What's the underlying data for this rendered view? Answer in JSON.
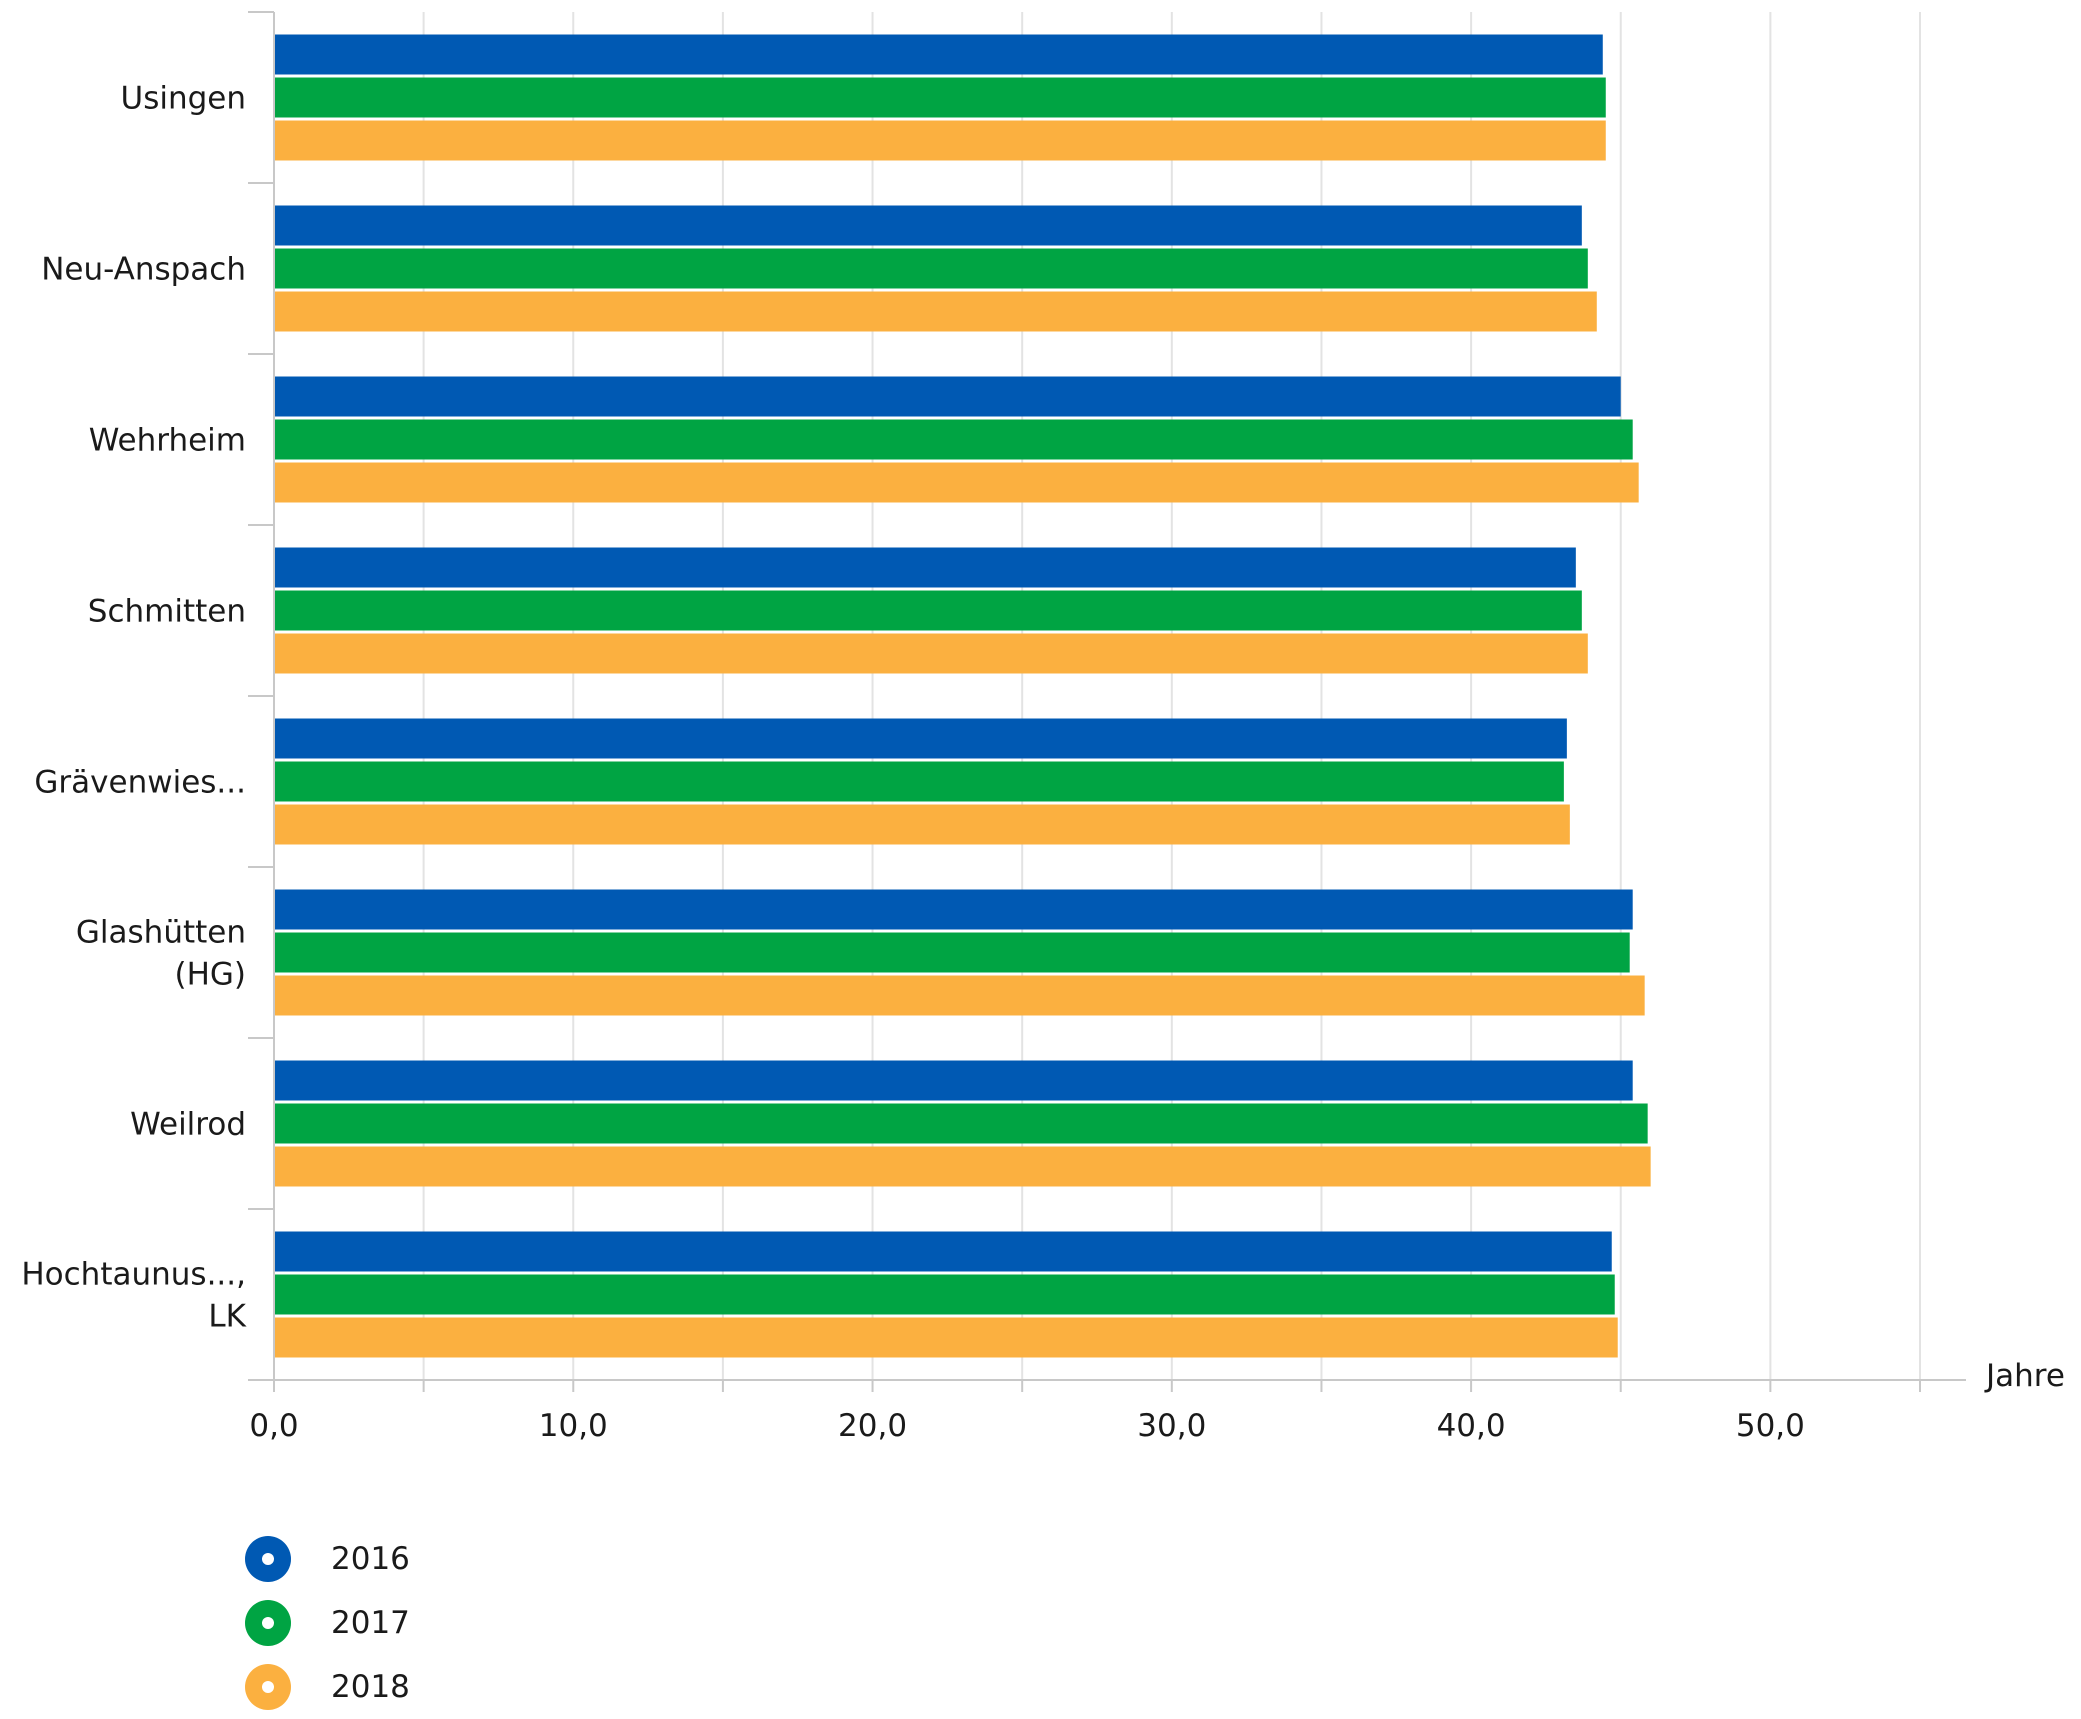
{
  "chart_data": {
    "type": "bar",
    "orientation": "horizontal",
    "categories": [
      [
        "Usingen"
      ],
      [
        "Neu-Anspach"
      ],
      [
        "Wehrheim"
      ],
      [
        "Schmitten"
      ],
      [
        "Grävenwies..."
      ],
      [
        "Glashütten",
        "(HG)"
      ],
      [
        "Weilrod"
      ],
      [
        "Hochtaunus...,",
        "LK"
      ]
    ],
    "series": [
      {
        "name": "2016",
        "color": "#0059b3",
        "values": [
          44.4,
          43.7,
          45.0,
          43.5,
          43.2,
          45.4,
          45.4,
          44.7
        ]
      },
      {
        "name": "2017",
        "color": "#00a443",
        "values": [
          44.5,
          43.9,
          45.4,
          43.7,
          43.1,
          45.3,
          45.9,
          44.8
        ]
      },
      {
        "name": "2018",
        "color": "#fbb040",
        "values": [
          44.5,
          44.2,
          45.6,
          43.9,
          43.3,
          45.8,
          46.0,
          44.9
        ]
      }
    ],
    "x_ticks": [
      "0,0",
      "10,0",
      "20,0",
      "30,0",
      "40,0",
      "50,0"
    ],
    "x_tick_values": [
      0,
      10,
      20,
      30,
      40,
      50
    ],
    "xlim": [
      0,
      55
    ],
    "xlabel": "Jahre",
    "grid": true,
    "legend_position": "bottom-left"
  }
}
